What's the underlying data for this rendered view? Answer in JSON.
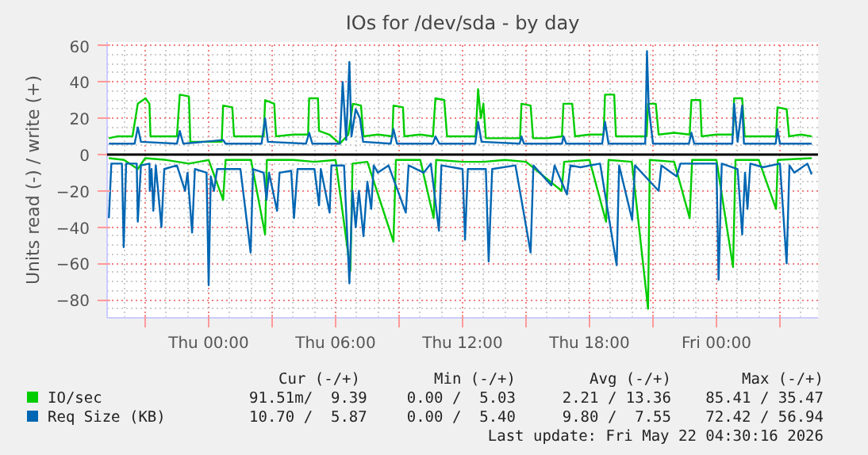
{
  "chart_data": {
    "type": "line",
    "title": "IOs for /dev/sda - by day",
    "ylabel": "Units read (-) / write (+)",
    "xlim": [
      "2026-05-20T19:12",
      "2026-05-22T04:48"
    ],
    "ylim": [
      -90,
      62
    ],
    "xticks": [
      {
        "value": "2026-05-20T21:00",
        "label": null
      },
      {
        "value": "2026-05-21T00:00",
        "label": "Thu 00:00"
      },
      {
        "value": "2026-05-21T03:00",
        "label": null
      },
      {
        "value": "2026-05-21T06:00",
        "label": "Thu 06:00"
      },
      {
        "value": "2026-05-21T09:00",
        "label": null
      },
      {
        "value": "2026-05-21T12:00",
        "label": "Thu 12:00"
      },
      {
        "value": "2026-05-21T15:00",
        "label": null
      },
      {
        "value": "2026-05-21T18:00",
        "label": "Thu 18:00"
      },
      {
        "value": "2026-05-21T21:00",
        "label": null
      },
      {
        "value": "2026-05-22T00:00",
        "label": "Fri 00:00"
      },
      {
        "value": "2026-05-22T03:00",
        "label": null
      }
    ],
    "yticks": [
      -80,
      -60,
      -40,
      -20,
      0,
      20,
      40,
      60
    ],
    "grid": true,
    "legend": "bottom",
    "ref_lines": [
      {
        "axis": "y",
        "value": 0,
        "color": "#000000"
      }
    ],
    "series": [
      {
        "name": "IO/sec",
        "color": "#00cc00",
        "x": [
          "2026-05-20T19:17",
          "2026-05-20T19:40",
          "2026-05-20T20:24",
          "2026-05-20T20:39",
          "2026-05-20T21:01",
          "2026-05-20T21:12",
          "2026-05-20T21:15",
          "2026-05-20T22:00",
          "2026-05-20T22:30",
          "2026-05-20T22:38",
          "2026-05-20T23:04",
          "2026-05-20T23:08",
          "2026-05-21T00:00",
          "2026-05-21T00:37",
          "2026-05-21T00:41",
          "2026-05-21T01:07",
          "2026-05-21T01:12",
          "2026-05-21T02:00",
          "2026-05-21T02:36",
          "2026-05-21T02:40",
          "2026-05-21T03:06",
          "2026-05-21T03:11",
          "2026-05-21T04:00",
          "2026-05-21T04:42",
          "2026-05-21T04:45",
          "2026-05-21T05:10",
          "2026-05-21T05:13",
          "2026-05-21T05:42",
          "2026-05-21T06:12",
          "2026-05-21T06:36",
          "2026-05-21T06:49",
          "2026-05-21T07:12",
          "2026-05-21T07:19",
          "2026-05-21T08:00",
          "2026-05-21T08:41",
          "2026-05-21T08:44",
          "2026-05-21T09:11",
          "2026-05-21T09:15",
          "2026-05-21T10:00",
          "2026-05-21T10:36",
          "2026-05-21T10:43",
          "2026-05-21T11:08",
          "2026-05-21T11:16",
          "2026-05-21T12:00",
          "2026-05-21T12:37",
          "2026-05-21T12:44",
          "2026-05-21T12:52",
          "2026-05-21T12:59",
          "2026-05-21T13:06",
          "2026-05-21T14:00",
          "2026-05-21T14:43",
          "2026-05-21T14:47",
          "2026-05-21T15:13",
          "2026-05-21T15:20",
          "2026-05-21T16:00",
          "2026-05-21T16:42",
          "2026-05-21T16:46",
          "2026-05-21T17:11",
          "2026-05-21T17:19",
          "2026-05-21T18:00",
          "2026-05-21T18:40",
          "2026-05-21T18:44",
          "2026-05-21T19:10",
          "2026-05-21T19:15",
          "2026-05-21T20:00",
          "2026-05-21T20:42",
          "2026-05-21T20:46",
          "2026-05-21T21:08",
          "2026-05-21T21:16",
          "2026-05-21T22:00",
          "2026-05-21T22:44",
          "2026-05-21T22:49",
          "2026-05-21T23:14",
          "2026-05-21T23:18",
          "2026-05-22T00:00",
          "2026-05-22T00:47",
          "2026-05-22T00:50",
          "2026-05-22T01:13",
          "2026-05-22T01:20",
          "2026-05-22T02:12",
          "2026-05-22T02:49",
          "2026-05-22T02:53",
          "2026-05-22T03:19",
          "2026-05-22T03:26",
          "2026-05-22T04:00",
          "2026-05-22T04:30"
        ],
        "values": [
          9,
          10,
          10,
          28,
          31,
          28,
          10,
          10,
          10,
          33,
          32,
          7,
          7,
          7,
          27,
          26,
          10,
          10,
          10,
          30,
          28,
          10,
          11,
          11,
          31,
          31,
          13,
          11,
          6,
          11,
          28,
          27,
          10,
          11,
          10,
          27,
          26,
          10,
          11,
          10,
          31,
          30,
          10,
          10,
          10,
          36,
          20,
          28,
          9,
          9,
          9,
          28,
          27,
          9,
          9,
          10,
          28,
          28,
          10,
          11,
          11,
          33,
          33,
          10,
          10,
          10,
          28,
          28,
          11,
          12,
          11,
          30,
          30,
          10,
          11,
          11,
          31,
          31,
          10,
          10,
          10,
          26,
          25,
          10,
          11,
          10
        ]
      },
      {
        "color": "#00cc00",
        "x": [
          "2026-05-20T19:17",
          "2026-05-20T20:00",
          "2026-05-20T20:39",
          "2026-05-20T21:00",
          "2026-05-20T22:00",
          "2026-05-20T23:04",
          "2026-05-21T00:00",
          "2026-05-21T00:41",
          "2026-05-21T00:48",
          "2026-05-21T02:00",
          "2026-05-21T02:40",
          "2026-05-21T02:45",
          "2026-05-21T04:00",
          "2026-05-21T05:00",
          "2026-05-21T06:00",
          "2026-05-21T06:42",
          "2026-05-21T06:48",
          "2026-05-21T07:30",
          "2026-05-21T08:44",
          "2026-05-21T08:51",
          "2026-05-21T10:00",
          "2026-05-21T10:38",
          "2026-05-21T10:45",
          "2026-05-21T12:00",
          "2026-05-21T13:00",
          "2026-05-21T14:00",
          "2026-05-21T15:00",
          "2026-05-21T16:41",
          "2026-05-21T16:48",
          "2026-05-21T18:00",
          "2026-05-21T18:47",
          "2026-05-21T18:54",
          "2026-05-21T20:00",
          "2026-05-21T20:46",
          "2026-05-21T20:51",
          "2026-05-21T22:00",
          "2026-05-21T22:44",
          "2026-05-21T22:51",
          "2026-05-22T00:00",
          "2026-05-22T00:47",
          "2026-05-22T00:54",
          "2026-05-22T02:00",
          "2026-05-22T02:49",
          "2026-05-22T02:54",
          "2026-05-22T04:30"
        ],
        "values": [
          -2,
          -3,
          -8,
          -2,
          -3,
          -5,
          -3,
          -25,
          -3,
          -3,
          -44,
          -3,
          -3,
          -4,
          -3,
          -64,
          -5,
          -4,
          -48,
          -3,
          -3,
          -35,
          -3,
          -4,
          -4,
          -3,
          -4,
          -20,
          -4,
          -3,
          -37,
          -3,
          -4,
          -85,
          -3,
          -4,
          -35,
          -3,
          -3,
          -62,
          -3,
          -3,
          -30,
          -3,
          -2
        ]
      },
      {
        "name": "Req Size (KB)",
        "color": "#0066b3",
        "x": [
          "2026-05-20T19:17",
          "2026-05-20T20:30",
          "2026-05-20T20:39",
          "2026-05-20T20:48",
          "2026-05-20T22:30",
          "2026-05-20T22:38",
          "2026-05-20T22:48",
          "2026-05-21T00:41",
          "2026-05-21T00:48",
          "2026-05-21T02:30",
          "2026-05-21T02:40",
          "2026-05-21T02:48",
          "2026-05-21T04:36",
          "2026-05-21T04:45",
          "2026-05-21T04:54",
          "2026-05-21T06:12",
          "2026-05-21T06:20",
          "2026-05-21T06:30",
          "2026-05-21T06:39",
          "2026-05-21T06:45",
          "2026-05-21T06:57",
          "2026-05-21T07:09",
          "2026-05-21T07:18",
          "2026-05-21T08:36",
          "2026-05-21T08:44",
          "2026-05-21T08:54",
          "2026-05-21T10:36",
          "2026-05-21T10:43",
          "2026-05-21T10:54",
          "2026-05-21T12:36",
          "2026-05-21T12:44",
          "2026-05-21T12:54",
          "2026-05-21T14:42",
          "2026-05-21T14:47",
          "2026-05-21T14:54",
          "2026-05-21T16:42",
          "2026-05-21T16:46",
          "2026-05-21T16:54",
          "2026-05-21T18:36",
          "2026-05-21T18:44",
          "2026-05-21T18:54",
          "2026-05-21T20:38",
          "2026-05-21T20:43",
          "2026-05-21T20:48",
          "2026-05-21T21:00",
          "2026-05-21T22:42",
          "2026-05-21T22:49",
          "2026-05-21T22:57",
          "2026-05-22T00:45",
          "2026-05-22T00:50",
          "2026-05-22T01:00",
          "2026-05-22T01:13",
          "2026-05-22T01:18",
          "2026-05-22T02:48",
          "2026-05-22T02:53",
          "2026-05-22T03:00",
          "2026-05-22T04:30"
        ],
        "values": [
          6,
          6,
          15,
          7,
          6,
          13,
          6,
          8,
          6,
          6,
          20,
          7,
          6,
          12,
          6,
          6,
          40,
          8,
          51,
          10,
          25,
          20,
          7,
          6,
          14,
          6,
          6,
          10,
          6,
          6,
          18,
          7,
          6,
          10,
          6,
          6,
          10,
          6,
          6,
          18,
          6,
          6,
          57,
          26,
          6,
          6,
          12,
          6,
          6,
          28,
          7,
          27,
          6,
          6,
          14,
          6,
          6
        ]
      },
      {
        "color": "#0066b3",
        "x": [
          "2026-05-20T19:17",
          "2026-05-20T19:24",
          "2026-05-20T19:54",
          "2026-05-20T19:59",
          "2026-05-20T20:06",
          "2026-05-20T20:36",
          "2026-05-20T20:39",
          "2026-05-20T20:48",
          "2026-05-20T21:12",
          "2026-05-20T21:13",
          "2026-05-20T21:18",
          "2026-05-20T21:23",
          "2026-05-20T21:30",
          "2026-05-20T21:46",
          "2026-05-20T21:54",
          "2026-05-20T22:30",
          "2026-05-20T22:53",
          "2026-05-20T23:00",
          "2026-05-20T23:13",
          "2026-05-20T23:21",
          "2026-05-20T23:54",
          "2026-05-21T00:00",
          "2026-05-21T00:06",
          "2026-05-21T00:15",
          "2026-05-21T00:24",
          "2026-05-21T01:30",
          "2026-05-21T01:59",
          "2026-05-21T02:06",
          "2026-05-21T02:36",
          "2026-05-21T02:44",
          "2026-05-21T02:51",
          "2026-05-21T03:14",
          "2026-05-21T03:21",
          "2026-05-21T03:54",
          "2026-05-21T04:02",
          "2026-05-21T04:12",
          "2026-05-21T05:00",
          "2026-05-21T05:13",
          "2026-05-21T05:18",
          "2026-05-21T05:43",
          "2026-05-21T05:48",
          "2026-05-21T06:24",
          "2026-05-21T06:39",
          "2026-05-21T06:48",
          "2026-05-21T06:57",
          "2026-05-21T07:06",
          "2026-05-21T07:19",
          "2026-05-21T07:30",
          "2026-05-21T07:41",
          "2026-05-21T07:48",
          "2026-05-21T08:00",
          "2026-05-21T08:30",
          "2026-05-21T09:19",
          "2026-05-21T09:27",
          "2026-05-21T10:10",
          "2026-05-21T10:30",
          "2026-05-21T10:53",
          "2026-05-21T11:00",
          "2026-05-21T12:00",
          "2026-05-21T12:07",
          "2026-05-21T12:15",
          "2026-05-21T13:06",
          "2026-05-21T13:14",
          "2026-05-21T13:24",
          "2026-05-21T14:30",
          "2026-05-21T15:13",
          "2026-05-21T15:21",
          "2026-05-21T16:12",
          "2026-05-21T16:21",
          "2026-05-21T16:56",
          "2026-05-21T17:06",
          "2026-05-21T17:34",
          "2026-05-21T18:30",
          "2026-05-21T19:17",
          "2026-05-21T19:24",
          "2026-05-21T20:01",
          "2026-05-21T20:09",
          "2026-05-21T21:16",
          "2026-05-21T21:24",
          "2026-05-21T22:07",
          "2026-05-21T22:18",
          "2026-05-22T00:00",
          "2026-05-22T00:06",
          "2026-05-22T00:15",
          "2026-05-22T01:00",
          "2026-05-22T01:13",
          "2026-05-22T01:21",
          "2026-05-22T01:28",
          "2026-05-22T01:36",
          "2026-05-22T02:12",
          "2026-05-22T03:00",
          "2026-05-22T03:19",
          "2026-05-22T03:27",
          "2026-05-22T03:41",
          "2026-05-22T04:18",
          "2026-05-22T04:30"
        ],
        "values": [
          -35,
          -5,
          -5,
          -51,
          -5,
          -5,
          -37,
          -6,
          -5,
          -20,
          -8,
          -31,
          -6,
          -40,
          -8,
          -6,
          -20,
          -10,
          -43,
          -8,
          -10,
          -72,
          -12,
          -20,
          -8,
          -8,
          -54,
          -8,
          -10,
          -25,
          -10,
          -31,
          -10,
          -9,
          -35,
          -8,
          -8,
          -28,
          -8,
          -32,
          -6,
          -6,
          -71,
          -20,
          -40,
          -20,
          -45,
          -15,
          -30,
          -6,
          -10,
          -6,
          -32,
          -6,
          -10,
          -5,
          -42,
          -6,
          -8,
          -47,
          -8,
          -8,
          -59,
          -8,
          -6,
          -54,
          -6,
          -17,
          -6,
          -22,
          -6,
          -7,
          -5,
          -61,
          -6,
          -36,
          -6,
          -20,
          -6,
          -12,
          -5,
          -5,
          -69,
          -5,
          -8,
          -44,
          -10,
          -30,
          -5,
          -7,
          -5,
          -60,
          -6,
          -10,
          -5,
          -11
        ]
      }
    ],
    "annotations": [
      "Cur (-/+)",
      "Min (-/+)",
      "Avg (-/+)",
      "Max (-/+)",
      "91.51m/  9.39",
      "0.00 /  5.03",
      "2.21 / 13.36",
      "85.41 / 35.47",
      "10.70 /  5.87",
      "0.00 /  5.40",
      "9.80 /  7.55",
      "72.42 / 56.94",
      "Last update: Fri May 22 04:30:16 2026"
    ]
  }
}
